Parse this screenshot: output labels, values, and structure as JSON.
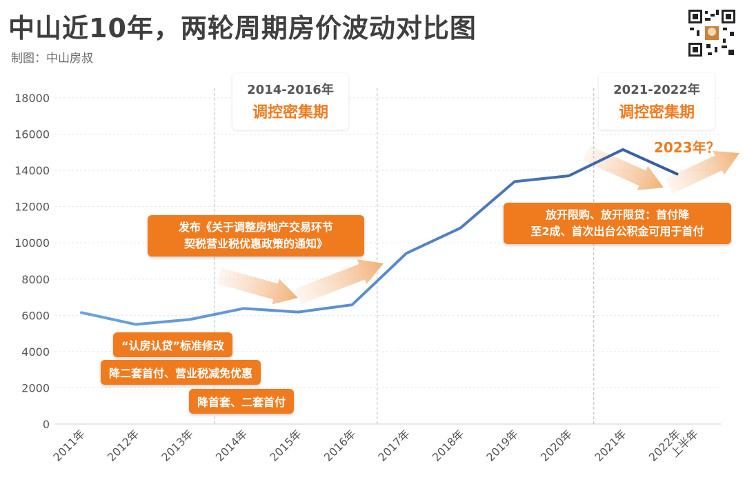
{
  "title": "中山近10年，两轮周期房价波动对比图",
  "subtitle": "制图：中山房叔",
  "colors": {
    "line_light": "#6aa3dc",
    "line_dark": "#3a5fa8",
    "accent": "#f07b1f",
    "periodText": "#f07b1f"
  },
  "periods": [
    {
      "years": "2014-2016年",
      "label": "调控密集期"
    },
    {
      "years": "2021-2022年",
      "label": "调控密集期"
    }
  ],
  "annotations": {
    "policy_2016": "发布《关于调整房地产交易环节契税营业税优惠政策的通知》",
    "policy_2016_line1": "发布《关于调整房地产交易环节",
    "policy_2016_line2": "契税营业税优惠政策的通知》",
    "policy_a": "“认房认贷”标准修改",
    "policy_b": "降二套首付、营业税减免优惠",
    "policy_c": "降首套、二套首付",
    "policy_2022_line1": "放开限购、放开限贷：首付降",
    "policy_2022_line2": "至2成、首次出台公积金可用于首付",
    "future": "2023年？"
  },
  "chart_data": {
    "type": "line",
    "categories": [
      "2011年",
      "2012年",
      "2013年",
      "2014年",
      "2015年",
      "2016年",
      "2017年",
      "2018年",
      "2019年",
      "2020年",
      "2021年",
      "2022年上半年"
    ],
    "series": [
      {
        "values": [
          6150,
          5500,
          5770,
          6380,
          6180,
          6580,
          9420,
          10820,
          13380,
          13700,
          15150,
          13800
        ]
      }
    ],
    "ylim": [
      0,
      18000
    ],
    "yticks": [
      0,
      2000,
      4000,
      6000,
      8000,
      10000,
      12000,
      14000,
      16000,
      18000
    ],
    "grid": true,
    "title": "中山近10年，两轮周期房价波动对比图"
  }
}
